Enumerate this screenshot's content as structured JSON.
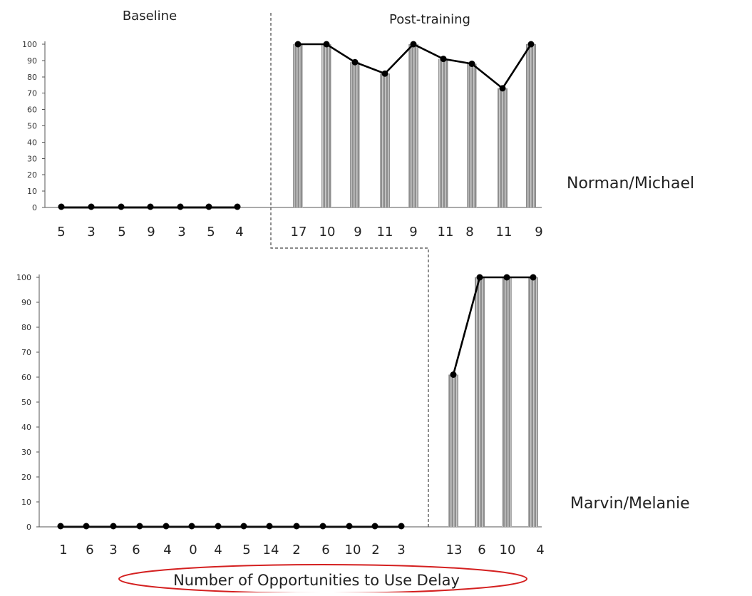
{
  "chart_data": [
    {
      "type": "bar",
      "participant": "Norman/Michael",
      "phases": [
        "Baseline",
        "Post-training"
      ],
      "ylim": [
        0,
        100
      ],
      "yticks": [
        "0",
        "10",
        "20",
        "30",
        "40",
        "50",
        "60",
        "70",
        "80",
        "90",
        "100"
      ],
      "baseline": {
        "opportunities": [
          "5",
          "3",
          "5",
          "9",
          "3",
          "5",
          "4"
        ],
        "values": [
          0,
          0,
          0,
          0,
          0,
          0,
          0
        ]
      },
      "post_training": {
        "opportunities": [
          "17",
          "10",
          "9",
          "11",
          "9",
          "11",
          "8",
          "11",
          "9"
        ],
        "values": [
          100,
          100,
          89,
          82,
          100,
          91,
          88,
          73,
          100
        ]
      }
    },
    {
      "type": "bar",
      "participant": "Marvin/Melanie",
      "ylim": [
        0,
        100
      ],
      "yticks": [
        "0",
        "10",
        "20",
        "30",
        "40",
        "50",
        "60",
        "70",
        "80",
        "90",
        "100"
      ],
      "baseline": {
        "opportunities": [
          "1",
          "6",
          "3",
          "6",
          "4",
          "0",
          "4",
          "5",
          "14",
          "2",
          "6",
          "10",
          "2",
          "3"
        ],
        "values": [
          0,
          0,
          0,
          0,
          0,
          0,
          0,
          0,
          0,
          0,
          0,
          0,
          0,
          0
        ]
      },
      "post_training": {
        "opportunities": [
          "13",
          "6",
          "10",
          "4"
        ],
        "values": [
          61,
          100,
          100,
          100
        ]
      }
    }
  ],
  "xlabel": "Number of Opportunities to Use Delay",
  "colors": {
    "bar": "#8e8e8e",
    "bar_shade": "#cfcfcf",
    "line": "#000000",
    "highlight_oval": "#d42020"
  }
}
